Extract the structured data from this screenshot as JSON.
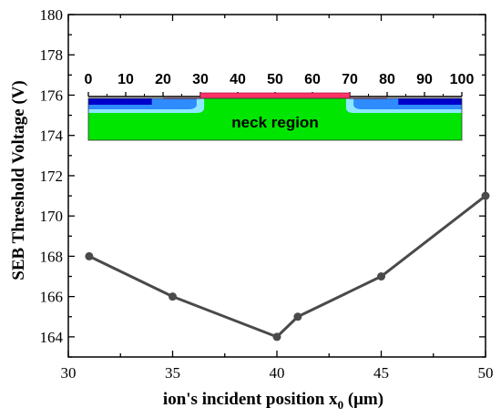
{
  "chart_data": {
    "type": "line",
    "title": "",
    "xlabel": "ion's incident position x",
    "xlabel_subscript": "0",
    "xlabel_unit": " (μm)",
    "ylabel": "SEB Threshold Voltage (V)",
    "xlim": [
      30,
      50
    ],
    "ylim": [
      163,
      180
    ],
    "x_ticks": [
      30,
      35,
      40,
      45,
      50
    ],
    "y_ticks": [
      164,
      166,
      168,
      170,
      172,
      174,
      176,
      178,
      180
    ],
    "grid": false,
    "series": [
      {
        "color": "#4a4a4a",
        "x": [
          31,
          35,
          40,
          41,
          45,
          50
        ],
        "y": [
          168,
          166,
          164,
          165,
          167,
          171
        ]
      }
    ],
    "inset": {
      "label": "neck region",
      "scale_ticks": [
        0,
        10,
        20,
        30,
        40,
        50,
        60,
        70,
        80,
        90,
        100
      ],
      "colors": {
        "substrate": "#00e600",
        "gate": "#ff3366",
        "source_dark": "#0000cc",
        "source_mid": "#2f8cff",
        "source_light": "#8ee8ff"
      }
    }
  }
}
